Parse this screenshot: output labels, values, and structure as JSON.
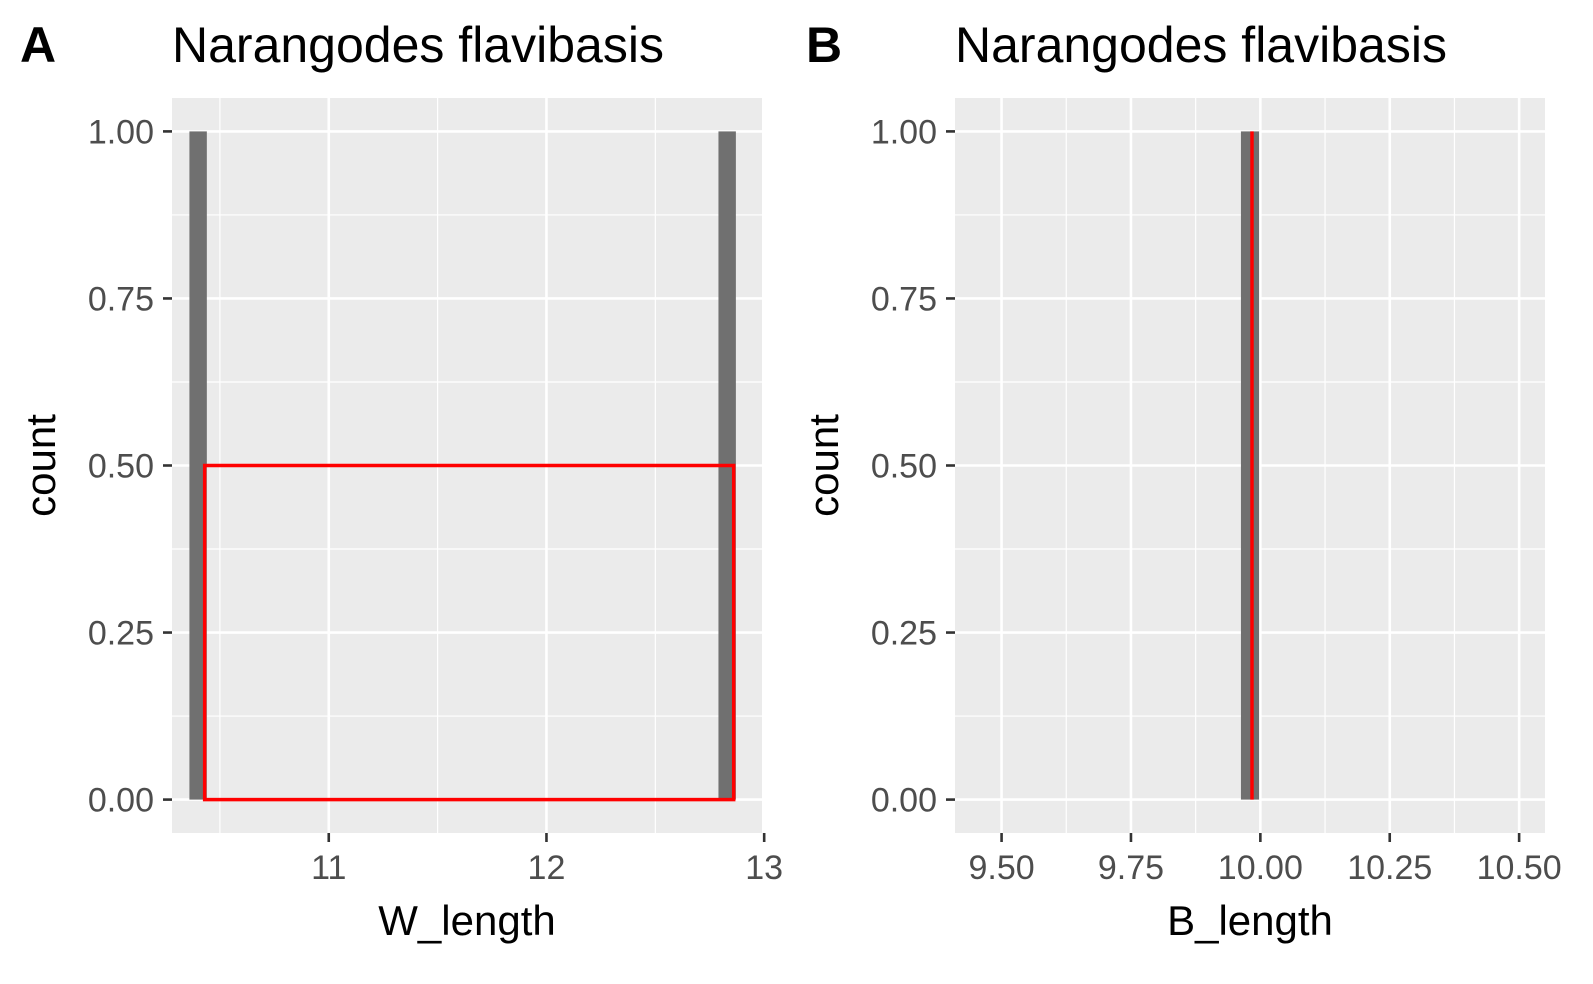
{
  "chart_data": [
    {
      "panel_tag": "A",
      "type": "bar",
      "title": "Narangodes flavibasis",
      "xlabel": "W_length",
      "ylabel": "count",
      "xlim": [
        10.28,
        12.99
      ],
      "ylim": [
        -0.05,
        1.05
      ],
      "x_ticks": [
        11,
        12,
        13
      ],
      "x_tick_labels": [
        "11",
        "12",
        "13"
      ],
      "y_ticks": [
        0,
        0.25,
        0.5,
        0.75,
        1
      ],
      "y_tick_labels": [
        "0.00",
        "0.25",
        "0.50",
        "0.75",
        "1.00"
      ],
      "grid": true,
      "bars": [
        {
          "x": 10.4,
          "width": 0.08,
          "count": 1
        },
        {
          "x": 12.83,
          "width": 0.08,
          "count": 1
        }
      ],
      "overlay": {
        "type": "rect",
        "color": "#ff0000",
        "x": [
          10.43,
          12.86
        ],
        "y": [
          0,
          0.5
        ]
      }
    },
    {
      "panel_tag": "B",
      "type": "bar",
      "title": "Narangodes flavibasis",
      "xlabel": "B_length",
      "ylabel": "count",
      "xlim": [
        9.41,
        10.55
      ],
      "ylim": [
        -0.05,
        1.05
      ],
      "x_ticks": [
        9.5,
        9.75,
        10,
        10.25,
        10.5
      ],
      "x_tick_labels": [
        "9.50",
        "9.75",
        "10.00",
        "10.25",
        "10.50"
      ],
      "y_ticks": [
        0,
        0.25,
        0.5,
        0.75,
        1
      ],
      "y_tick_labels": [
        "0.00",
        "0.25",
        "0.50",
        "0.75",
        "1.00"
      ],
      "grid": true,
      "bars": [
        {
          "x": 9.98,
          "width": 0.035,
          "count": 1
        }
      ],
      "overlay": {
        "type": "vline",
        "color": "#ff0000",
        "x": 9.98,
        "y": [
          0,
          1
        ]
      }
    }
  ]
}
